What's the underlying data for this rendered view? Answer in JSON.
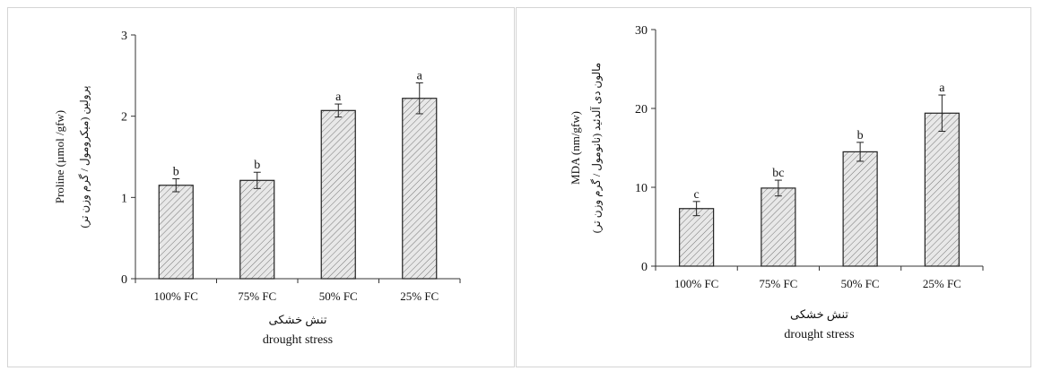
{
  "chart_data": [
    {
      "type": "bar",
      "categories": [
        "100% FC",
        "75% FC",
        "50% FC",
        "25% FC"
      ],
      "values": [
        1.15,
        1.21,
        2.07,
        2.22
      ],
      "errors": [
        0.08,
        0.1,
        0.08,
        0.19
      ],
      "letters": [
        "b",
        "b",
        "a",
        "a"
      ],
      "ylabel": "Proline (µmol /gfw)",
      "ylabel_fa": "پرولین (میکرومول / گرم وزن تر)",
      "xlabel_fa": "تنش خشکی",
      "xlabel": "drought stress",
      "ylim": [
        0,
        3
      ],
      "yticks": [
        "0",
        "1",
        "2",
        "3"
      ],
      "bar_fill": "#e8e8e8",
      "grid": false
    },
    {
      "type": "bar",
      "categories": [
        "100% FC",
        "75% FC",
        "50% FC",
        "25% FC"
      ],
      "values": [
        7.3,
        9.9,
        14.5,
        19.4
      ],
      "errors": [
        0.9,
        1.0,
        1.2,
        2.3
      ],
      "letters": [
        "c",
        "bc",
        "b",
        "a"
      ],
      "ylabel": "MDA (nm/gfw)",
      "ylabel_fa": "مالون دی آلدئید (نانومول / گرم وزن تر)",
      "xlabel_fa": "تنش خشکی",
      "xlabel": "drought stress",
      "ylim": [
        0,
        30
      ],
      "yticks": [
        "0",
        "10",
        "20",
        "30"
      ],
      "bar_fill": "#e8e8e8",
      "grid": false
    }
  ]
}
